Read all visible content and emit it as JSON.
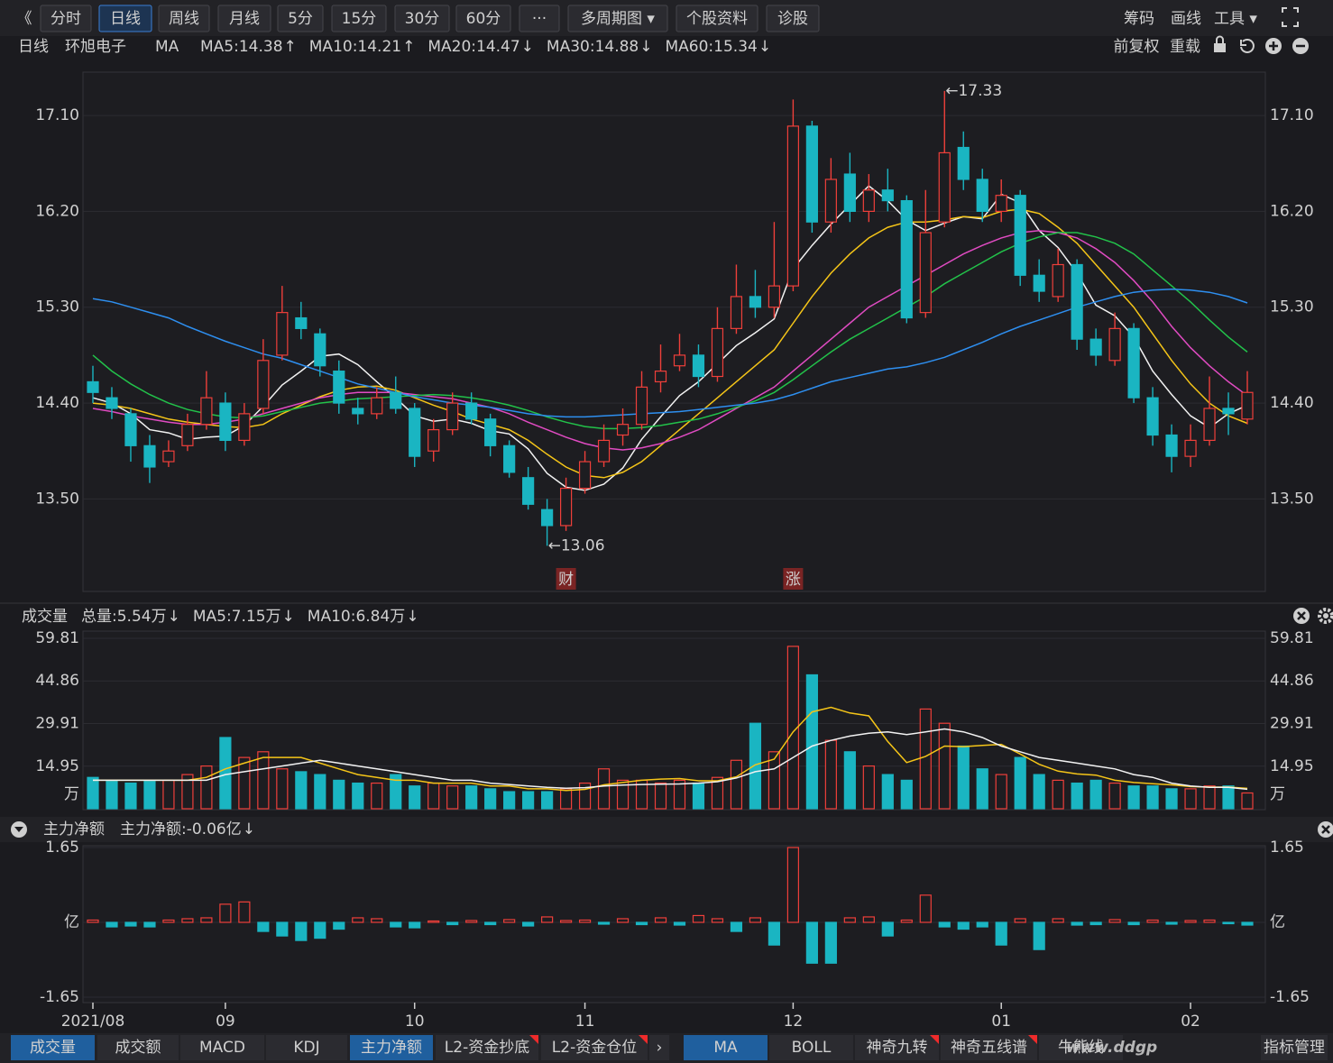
{
  "toolbar": {
    "buttons": [
      "《",
      "分时",
      "日线",
      "周线",
      "月线",
      "5分",
      "15分",
      "30分",
      "60分",
      "···",
      "多周期图 ▾",
      "个股资料",
      "诊股"
    ],
    "active": "日线",
    "right": [
      "筹码",
      "画线",
      "工具 ▾"
    ]
  },
  "info_bar": {
    "period": "日线",
    "stock": "环旭电子",
    "indicator": "MA",
    "right": [
      "前复权",
      "重载"
    ]
  },
  "chart_data": [
    {
      "type": "candlestick",
      "categories": [
        "2021/08",
        null,
        null,
        null,
        null,
        null,
        null,
        "09",
        null,
        null,
        null,
        null,
        null,
        null,
        null,
        null,
        null,
        "10",
        null,
        null,
        null,
        null,
        null,
        null,
        null,
        null,
        "11",
        null,
        null,
        null,
        null,
        null,
        null,
        null,
        null,
        null,
        null,
        "12",
        null,
        null,
        null,
        null,
        null,
        null,
        null,
        null,
        null,
        null,
        "01",
        null,
        null,
        null,
        null,
        null,
        null,
        null,
        null,
        null,
        "02",
        null,
        null,
        null
      ],
      "open": [
        14.6,
        14.45,
        14.3,
        14.0,
        13.85,
        14.0,
        14.2,
        14.4,
        14.05,
        14.35,
        14.85,
        15.2,
        15.05,
        14.7,
        14.35,
        14.3,
        14.5,
        14.35,
        13.95,
        14.15,
        14.4,
        14.25,
        14.0,
        13.7,
        13.4,
        13.25,
        13.6,
        13.85,
        14.1,
        14.2,
        14.6,
        14.75,
        14.85,
        14.65,
        15.1,
        15.4,
        15.3,
        15.5,
        17.0,
        16.1,
        16.55,
        16.2,
        16.4,
        16.3,
        15.25,
        16.1,
        16.8,
        16.5,
        16.2,
        16.35,
        15.6,
        15.4,
        15.7,
        15.0,
        14.8,
        15.1,
        14.45,
        14.1,
        13.9,
        14.05,
        14.35,
        14.25
      ],
      "high": [
        14.75,
        14.55,
        14.35,
        14.1,
        14.05,
        14.3,
        14.7,
        14.5,
        14.4,
        15.0,
        15.5,
        15.35,
        15.1,
        14.8,
        14.45,
        14.55,
        14.65,
        14.4,
        14.25,
        14.5,
        14.5,
        14.3,
        14.05,
        13.8,
        13.5,
        13.7,
        13.95,
        14.2,
        14.35,
        14.7,
        14.95,
        15.05,
        14.95,
        15.3,
        15.7,
        15.65,
        16.1,
        17.25,
        17.05,
        16.7,
        16.75,
        16.55,
        16.6,
        16.35,
        16.4,
        17.33,
        16.95,
        16.6,
        16.5,
        16.4,
        15.75,
        15.85,
        15.75,
        15.1,
        15.25,
        15.15,
        14.55,
        14.2,
        14.2,
        14.65,
        14.5,
        14.7
      ],
      "low": [
        14.4,
        14.25,
        13.85,
        13.65,
        13.8,
        13.95,
        14.15,
        13.95,
        14.0,
        14.3,
        14.8,
        15.0,
        14.65,
        14.3,
        14.2,
        14.25,
        14.3,
        13.8,
        13.85,
        14.1,
        14.2,
        13.9,
        13.7,
        13.4,
        13.06,
        13.2,
        13.55,
        13.8,
        14.0,
        14.15,
        14.5,
        14.7,
        14.55,
        14.6,
        15.05,
        15.2,
        15.2,
        15.45,
        16.0,
        16.0,
        16.1,
        16.1,
        16.2,
        15.15,
        15.2,
        16.05,
        16.4,
        16.1,
        16.1,
        15.5,
        15.35,
        15.35,
        14.9,
        14.75,
        14.75,
        14.4,
        14.0,
        13.75,
        13.8,
        14.0,
        14.1,
        14.2
      ],
      "close": [
        14.5,
        14.35,
        14.0,
        13.8,
        13.95,
        14.2,
        14.45,
        14.05,
        14.3,
        14.8,
        15.25,
        15.1,
        14.75,
        14.4,
        14.3,
        14.45,
        14.35,
        13.9,
        14.15,
        14.4,
        14.25,
        14.0,
        13.75,
        13.45,
        13.25,
        13.6,
        13.85,
        14.05,
        14.2,
        14.55,
        14.7,
        14.85,
        14.65,
        15.1,
        15.4,
        15.3,
        15.5,
        17.0,
        16.1,
        16.5,
        16.2,
        16.4,
        16.3,
        15.2,
        16.0,
        16.75,
        16.5,
        16.2,
        16.35,
        15.6,
        15.45,
        15.7,
        15.0,
        14.85,
        15.1,
        14.45,
        14.1,
        13.9,
        14.05,
        14.35,
        14.3,
        14.5
      ],
      "up_color": "#ee3f3a",
      "down_color": "#1ab5c2",
      "ylim": [
        12.64,
        17.49
      ],
      "yticks": [
        {
          "value": 13.5,
          "label": "13.50"
        },
        {
          "value": 14.4,
          "label": "14.40"
        },
        {
          "value": 15.3,
          "label": "15.30"
        },
        {
          "value": 16.2,
          "label": "16.20"
        },
        {
          "value": 17.1,
          "label": "17.10"
        }
      ],
      "grid": true,
      "series": [
        {
          "name": "MA5:14.38",
          "trend": "↑",
          "color": "#f2f2f2",
          "values": [
            14.45,
            14.4,
            14.3,
            14.15,
            14.12,
            14.06,
            14.08,
            14.09,
            14.19,
            14.37,
            14.57,
            14.7,
            14.84,
            14.86,
            14.76,
            14.6,
            14.45,
            14.28,
            14.23,
            14.25,
            14.21,
            14.14,
            14.11,
            13.97,
            13.74,
            13.61,
            13.58,
            13.64,
            13.79,
            14.06,
            14.27,
            14.47,
            14.6,
            14.77,
            14.94,
            15.06,
            15.19,
            15.66,
            15.88,
            16.08,
            16.26,
            16.44,
            16.3,
            16.12,
            16.02,
            16.09,
            16.15,
            16.13,
            16.36,
            16.28,
            16.02,
            15.86,
            15.62,
            15.32,
            15.22,
            15.02,
            14.7,
            14.48,
            14.28,
            14.17,
            14.3,
            14.38
          ]
        },
        {
          "name": "MA10:14.21",
          "trend": "↑",
          "color": "#f5c518",
          "values": [
            14.4,
            14.38,
            14.35,
            14.3,
            14.25,
            14.22,
            14.2,
            14.18,
            14.17,
            14.2,
            14.3,
            14.38,
            14.46,
            14.52,
            14.55,
            14.56,
            14.52,
            14.45,
            14.38,
            14.32,
            14.25,
            14.2,
            14.15,
            14.05,
            13.92,
            13.8,
            13.72,
            13.7,
            13.75,
            13.85,
            14.0,
            14.15,
            14.3,
            14.45,
            14.6,
            14.75,
            14.9,
            15.15,
            15.4,
            15.62,
            15.8,
            15.95,
            16.05,
            16.1,
            16.1,
            16.12,
            16.15,
            16.14,
            16.2,
            16.22,
            16.18,
            16.05,
            15.9,
            15.7,
            15.5,
            15.3,
            15.05,
            14.8,
            14.58,
            14.4,
            14.28,
            14.21
          ]
        },
        {
          "name": "MA20:14.47",
          "trend": "↓",
          "color": "#e04bc2",
          "values": [
            14.35,
            14.32,
            14.28,
            14.25,
            14.22,
            14.2,
            14.2,
            14.22,
            14.25,
            14.3,
            14.35,
            14.4,
            14.45,
            14.48,
            14.5,
            14.5,
            14.5,
            14.48,
            14.46,
            14.44,
            14.4,
            14.36,
            14.3,
            14.22,
            14.15,
            14.08,
            14.02,
            13.98,
            13.96,
            13.98,
            14.02,
            14.08,
            14.15,
            14.25,
            14.35,
            14.45,
            14.55,
            14.7,
            14.85,
            15.0,
            15.15,
            15.3,
            15.4,
            15.5,
            15.6,
            15.7,
            15.8,
            15.88,
            15.95,
            16.0,
            16.02,
            16.0,
            15.95,
            15.85,
            15.72,
            15.55,
            15.35,
            15.12,
            14.92,
            14.75,
            14.6,
            14.47
          ]
        },
        {
          "name": "MA30:14.88",
          "trend": "↓",
          "color": "#22c24a",
          "values": [
            14.85,
            14.7,
            14.58,
            14.48,
            14.4,
            14.34,
            14.3,
            14.27,
            14.26,
            14.28,
            14.32,
            14.36,
            14.4,
            14.42,
            14.44,
            14.45,
            14.46,
            14.47,
            14.48,
            14.47,
            14.45,
            14.42,
            14.38,
            14.33,
            14.27,
            14.22,
            14.18,
            14.16,
            14.16,
            14.17,
            14.19,
            14.22,
            14.25,
            14.3,
            14.36,
            14.42,
            14.5,
            14.62,
            14.75,
            14.88,
            15.0,
            15.1,
            15.2,
            15.3,
            15.4,
            15.52,
            15.62,
            15.72,
            15.82,
            15.9,
            15.96,
            16.0,
            16.0,
            15.96,
            15.9,
            15.8,
            15.65,
            15.5,
            15.35,
            15.18,
            15.02,
            14.88
          ]
        },
        {
          "name": "MA60:15.34",
          "trend": "↓",
          "color": "#2e8ff0",
          "values": [
            15.38,
            15.35,
            15.3,
            15.25,
            15.2,
            15.12,
            15.05,
            14.98,
            14.92,
            14.86,
            14.82,
            14.76,
            14.7,
            14.64,
            14.58,
            14.54,
            14.5,
            14.46,
            14.43,
            14.4,
            14.38,
            14.36,
            14.33,
            14.3,
            14.28,
            14.27,
            14.27,
            14.28,
            14.29,
            14.3,
            14.31,
            14.32,
            14.34,
            14.36,
            14.38,
            14.4,
            14.43,
            14.48,
            14.54,
            14.6,
            14.64,
            14.68,
            14.72,
            14.74,
            14.78,
            14.83,
            14.9,
            14.97,
            15.05,
            15.12,
            15.18,
            15.24,
            15.3,
            15.35,
            15.4,
            15.44,
            15.46,
            15.47,
            15.46,
            15.44,
            15.4,
            15.34
          ]
        }
      ],
      "annotations": [
        {
          "text": "←17.33",
          "value": 17.33
        },
        {
          "text": "←13.06",
          "value": 13.06
        }
      ],
      "events": [
        {
          "label": "财",
          "index": 25
        },
        {
          "label": "涨",
          "index": 37
        }
      ]
    },
    {
      "type": "bar",
      "title": "成交量",
      "value_label": "总量:5.54万",
      "value_trend": "↓",
      "values": [
        11,
        10,
        9,
        10,
        10,
        12,
        15,
        25,
        18,
        20,
        14,
        13,
        12,
        10,
        9,
        9,
        12,
        8,
        9,
        8,
        8,
        7,
        6,
        6,
        6,
        7,
        9,
        14,
        10,
        10,
        9,
        10,
        9,
        11,
        17,
        30,
        20,
        57,
        47,
        24,
        20,
        15,
        12,
        10,
        35,
        30,
        22,
        14,
        12,
        18,
        12,
        10,
        9,
        10,
        9,
        8,
        8,
        7,
        7,
        8,
        8,
        5.54
      ],
      "ylim": [
        0,
        59.81
      ],
      "yticks": [
        14.95,
        29.91,
        44.86,
        59.81
      ],
      "unit": "万",
      "grid": true,
      "series": [
        {
          "name": "MA5:7.15万",
          "trend": "↓",
          "color": "#f5c518",
          "values": [
            10,
            10,
            10,
            10,
            10,
            10,
            11,
            14,
            16,
            18,
            18,
            18,
            16,
            14,
            12,
            11,
            10,
            10,
            9,
            9,
            9,
            8,
            8,
            7,
            7,
            6.4,
            6.8,
            8.4,
            9.2,
            10,
            10.4,
            10.6,
            9.8,
            9.8,
            11.2,
            15.4,
            17.4,
            27,
            34,
            35.6,
            33.6,
            32.6,
            23.6,
            16.2,
            18.4,
            22,
            21.8,
            22.2,
            22.6,
            19.2,
            15.6,
            13.2,
            12.2,
            11.8,
            10,
            9.2,
            8.8,
            8.4,
            7.8,
            7.6,
            7.6,
            7.15
          ]
        },
        {
          "name": "MA10:6.84万",
          "trend": "↓",
          "color": "#f2f2f2",
          "values": [
            10,
            10,
            10,
            10,
            10,
            10,
            10,
            12,
            13,
            14,
            15,
            16,
            17,
            16,
            15,
            14,
            13,
            12,
            11,
            10,
            10,
            9,
            8.5,
            8,
            7.5,
            7.2,
            7.4,
            8,
            8.3,
            8.5,
            8.6,
            8.7,
            9,
            9.5,
            10.8,
            13,
            14,
            18,
            22,
            24,
            25.5,
            26.5,
            27,
            26,
            27,
            28,
            27,
            25,
            22,
            20,
            18,
            17,
            16,
            15,
            14,
            12,
            11,
            9,
            8,
            7.5,
            7.5,
            6.84
          ]
        }
      ]
    },
    {
      "type": "bar",
      "title": "主力净额",
      "value_label": "主力净额:-0.06亿",
      "value_trend": "↓",
      "values": [
        0.05,
        -0.1,
        -0.08,
        -0.1,
        0.05,
        0.08,
        0.1,
        0.4,
        0.45,
        -0.2,
        -0.3,
        -0.4,
        -0.35,
        -0.15,
        0.1,
        0.08,
        -0.1,
        -0.12,
        0.03,
        -0.05,
        0.04,
        -0.05,
        0.06,
        -0.08,
        0.12,
        0.04,
        0.05,
        -0.04,
        0.08,
        -0.05,
        0.1,
        -0.06,
        0.15,
        0.08,
        -0.2,
        0.1,
        -0.5,
        1.65,
        -0.9,
        -0.9,
        0.1,
        0.12,
        -0.3,
        0.05,
        0.6,
        -0.1,
        -0.15,
        -0.1,
        -0.5,
        0.08,
        -0.6,
        0.08,
        -0.06,
        -0.05,
        0.06,
        -0.05,
        0.05,
        -0.04,
        0.04,
        0.05,
        -0.03,
        -0.06
      ],
      "ylim": [
        -1.65,
        1.65
      ],
      "yticks": [
        -1.65,
        {
          "value": 0,
          "label": "亿"
        },
        1.65
      ],
      "grid": true,
      "pos_color": "#ee3f3a",
      "neg_color": "#1ab5c2"
    }
  ],
  "bottom_tabs": {
    "left": [
      "成交量",
      "成交额",
      "MACD",
      "KDJ",
      "主力净额",
      "L2-资金抄底",
      "L2-资金仓位",
      "›"
    ],
    "left_active": [
      "成交量",
      "主力净额"
    ],
    "right": [
      "MA",
      "BOLL",
      "神奇九转",
      "神奇五线谱",
      "牛熊线",
      "指标管理"
    ],
    "right_active": [
      "MA"
    ]
  },
  "watermark": "www.ddgp"
}
